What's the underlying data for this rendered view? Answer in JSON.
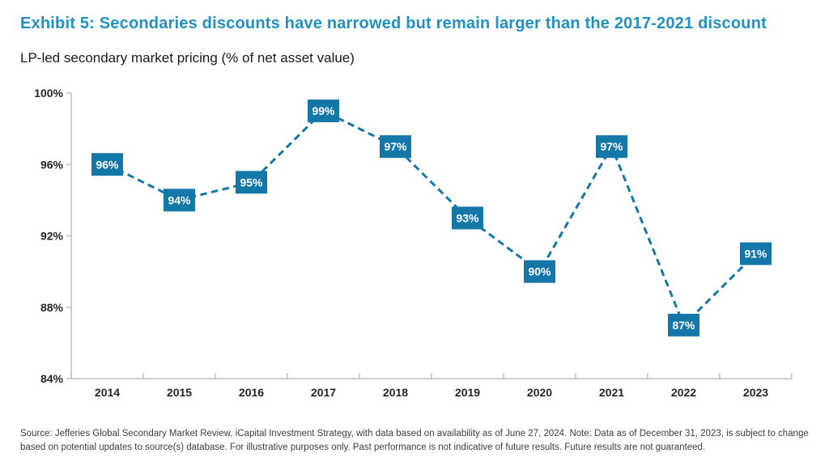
{
  "header": {
    "title": "Exhibit 5: Secondaries discounts have narrowed but remain larger than the 2017-2021 discount",
    "subtitle": "LP-led secondary market pricing (% of net asset value)"
  },
  "chart_data": {
    "type": "line",
    "title": "Exhibit 5: Secondaries discounts have narrowed but remain larger than the 2017-2021 discount",
    "subtitle": "LP-led secondary market pricing (% of net asset value)",
    "categories": [
      "2014",
      "2015",
      "2016",
      "2017",
      "2018",
      "2019",
      "2020",
      "2021",
      "2022",
      "2023"
    ],
    "values": [
      96,
      94,
      95,
      99,
      97,
      93,
      90,
      97,
      87,
      91
    ],
    "data_labels": [
      "96%",
      "94%",
      "95%",
      "99%",
      "97%",
      "93%",
      "90%",
      "97%",
      "87%",
      "91%"
    ],
    "xlabel": "",
    "ylabel": "",
    "ylim": [
      84,
      100
    ],
    "ytick_values": [
      84,
      88,
      92,
      96,
      100
    ],
    "ytick_labels": [
      "84%",
      "88%",
      "92%",
      "96%",
      "100%"
    ],
    "grid": false,
    "legend": "none",
    "line_style": "dashed",
    "marker": "square-label-box",
    "colors": {
      "title": "#2191C1",
      "line": "#1377A7",
      "label_bg": "#1377A7",
      "label_text": "#FFFFFF",
      "axis": "#BFBFBF",
      "tick_text": "#262626"
    }
  },
  "footer": {
    "source_text": "Source: Jefferies Global Secondary Market Review, iCapital Investment Strategy, with data based on availability as of June 27, 2024. Note: Data as of December 31, 2023, is subject to change based on potential updates to source(s) database. For illustrative purposes only. Past performance is not indicative of future results. Future results are not guaranteed."
  }
}
